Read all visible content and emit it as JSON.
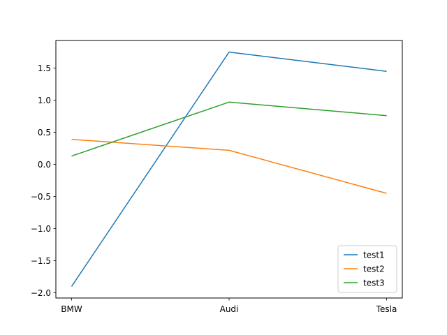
{
  "chart_data": {
    "type": "line",
    "categories": [
      "BMW",
      "Audi",
      "Tesla"
    ],
    "series": [
      {
        "name": "test1",
        "values": [
          -1.9,
          1.75,
          1.45
        ],
        "color": "#1f77b4"
      },
      {
        "name": "test2",
        "values": [
          0.39,
          0.22,
          -0.45
        ],
        "color": "#ff7f0e"
      },
      {
        "name": "test3",
        "values": [
          0.13,
          0.97,
          0.76
        ],
        "color": "#2ca02c"
      }
    ],
    "yticks": [
      -2.0,
      -1.5,
      -1.0,
      -0.5,
      0.0,
      0.5,
      1.0,
      1.5
    ],
    "ytick_labels": [
      "−2.0",
      "−1.5",
      "−1.0",
      "−0.5",
      "0.0",
      "0.5",
      "1.0",
      "1.5"
    ],
    "ylim": [
      -2.08,
      1.93
    ],
    "title": "",
    "xlabel": "",
    "ylabel": "",
    "grid": false,
    "legend_position": "lower right"
  }
}
